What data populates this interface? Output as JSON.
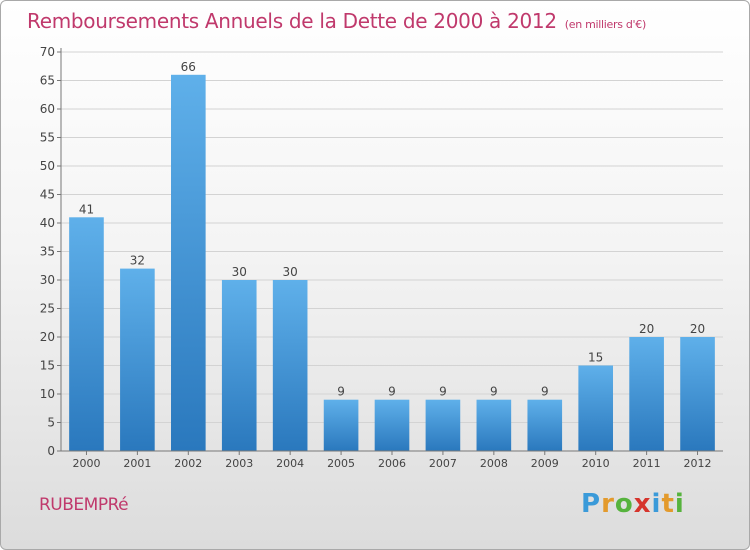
{
  "title": "Remboursements Annuels de la Dette de 2000 à 2012",
  "subtitle": "(en milliers d'€)",
  "commune": "RUBEMPRé",
  "logo": {
    "letters": [
      "P",
      "r",
      "o",
      "x",
      "i",
      "t",
      "i"
    ],
    "colors": [
      "#3a9ad9",
      "#e39a2c",
      "#56b33d",
      "#d6342c",
      "#3a9ad9",
      "#e39a2c",
      "#56b33d"
    ]
  },
  "chart_data": {
    "type": "bar",
    "categories": [
      "2000",
      "2001",
      "2002",
      "2003",
      "2004",
      "2005",
      "2006",
      "2007",
      "2008",
      "2009",
      "2010",
      "2011",
      "2012"
    ],
    "values": [
      41,
      32,
      66,
      30,
      30,
      9,
      9,
      9,
      9,
      9,
      15,
      20,
      20
    ],
    "ylim": [
      0,
      70
    ],
    "yticks": [
      0,
      5,
      10,
      15,
      20,
      25,
      30,
      35,
      40,
      45,
      50,
      55,
      60,
      65,
      70
    ],
    "grid": true,
    "bar_color": "#3d8fd4"
  }
}
